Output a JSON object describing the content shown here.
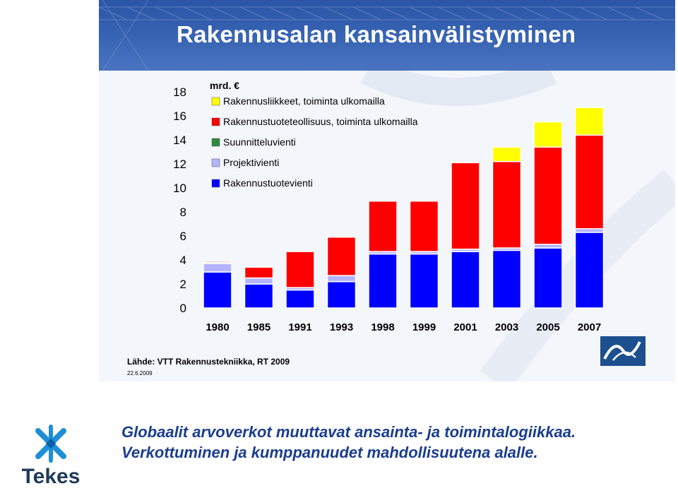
{
  "slide": {
    "title": "Rakennusalan kansainvälistyminen",
    "source": "Lähde: VTT Rakennustekniikka, RT 2009",
    "date": "22.6.2009"
  },
  "footer": {
    "line1": "Globaalit arvoverkot muuttavat ansainta- ja toimintalogiikkaa.",
    "line2": "Verkottuminen ja kumppanuudet mahdollisuutena alalle.",
    "logo_text": "Tekes"
  },
  "colors": {
    "header_blue": "#2b55a6",
    "footer_text": "#1a3d8f",
    "tekes_blue": "#1e8fd6"
  },
  "chart_data": {
    "type": "bar",
    "stacked": true,
    "unit_label": "mrd. €",
    "categories": [
      "1980",
      "1985",
      "1991",
      "1993",
      "1998",
      "1999",
      "2001",
      "2003",
      "2005",
      "2007"
    ],
    "ylim": [
      0,
      18
    ],
    "yticks": [
      0,
      2,
      4,
      6,
      8,
      10,
      12,
      14,
      16,
      18
    ],
    "grid": false,
    "legend_position": "top-left",
    "series": [
      {
        "name": "Rakennustuotevienti",
        "color": "#0000ff",
        "values": [
          3.0,
          2.0,
          1.5,
          2.2,
          4.5,
          4.5,
          4.7,
          4.8,
          5.0,
          6.3
        ]
      },
      {
        "name": "Projektivienti",
        "color": "#b3b3ff",
        "values": [
          0.7,
          0.5,
          0.2,
          0.5,
          0.2,
          0.2,
          0.2,
          0.2,
          0.3,
          0.3
        ]
      },
      {
        "name": "Suunnitteluvienti",
        "color": "#2e8b3e",
        "values": [
          0.1,
          0.0,
          0.0,
          0.0,
          0.0,
          0.0,
          0.0,
          0.0,
          0.0,
          0.0
        ]
      },
      {
        "name": "Rakennustuoteteollisuus, toiminta ulkomailla",
        "color": "#ff0000",
        "values": [
          0.1,
          0.9,
          3.0,
          3.2,
          4.2,
          4.2,
          7.2,
          7.2,
          8.1,
          7.8
        ]
      },
      {
        "name": "Rakennusliikkeet, toiminta ulkomailla",
        "color": "#ffff00",
        "values": [
          0.0,
          0.0,
          0.0,
          0.0,
          0.0,
          0.0,
          0.0,
          1.2,
          2.1,
          2.3
        ]
      }
    ]
  }
}
